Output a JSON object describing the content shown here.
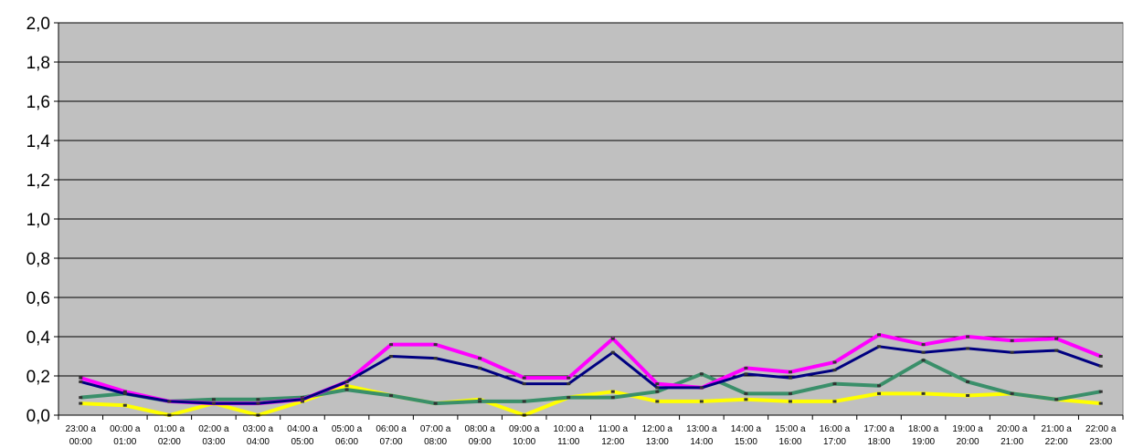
{
  "chart_data": {
    "type": "line",
    "title": "",
    "xlabel": "",
    "ylabel": "",
    "ylim": [
      0,
      2.0
    ],
    "ytick_step": 0.2,
    "ytick_labels": [
      "0,0",
      "0,2",
      "0,4",
      "0,6",
      "0,8",
      "1,0",
      "1,2",
      "1,4",
      "1,6",
      "1,8",
      "2,0"
    ],
    "grid": true,
    "legend": "none",
    "plot_background": "#C0C0C0",
    "categories": [
      "23:00 a 00:00",
      "00:00 a 01:00",
      "01:00 a 02:00",
      "02:00 a 03:00",
      "03:00 a 04:00",
      "04:00 a 05:00",
      "05:00 a 06:00",
      "06:00 a 07:00",
      "07:00 a 08:00",
      "08:00 a 09:00",
      "09:00 a 10:00",
      "10:00 a 11:00",
      "11:00 a 12:00",
      "12:00 a 13:00",
      "13:00 a 14:00",
      "14:00 a 15:00",
      "15:00 a 16:00",
      "16:00 a 17:00",
      "17:00 a 18:00",
      "18:00 a 19:00",
      "19:00 a 20:00",
      "20:00 a 21:00",
      "21:00 a 22:00",
      "22:00 a 23:00"
    ],
    "series": [
      {
        "color": "#FFFF00",
        "width": 4,
        "values": [
          0.06,
          0.05,
          0.0,
          0.06,
          0.0,
          0.07,
          0.15,
          0.1,
          0.06,
          0.08,
          0.0,
          0.09,
          0.12,
          0.07,
          0.07,
          0.08,
          0.07,
          0.07,
          0.11,
          0.11,
          0.1,
          0.11,
          0.08,
          0.06
        ]
      },
      {
        "color": "#3A8F6A",
        "width": 4,
        "values": [
          0.09,
          0.11,
          0.07,
          0.08,
          0.08,
          0.09,
          0.13,
          0.1,
          0.06,
          0.07,
          0.07,
          0.09,
          0.09,
          0.12,
          0.21,
          0.11,
          0.11,
          0.16,
          0.15,
          0.28,
          0.17,
          0.11,
          0.08,
          0.12
        ]
      },
      {
        "color": "#FF00FF",
        "width": 4,
        "values": [
          0.19,
          0.12,
          0.07,
          0.06,
          0.06,
          0.08,
          0.17,
          0.36,
          0.36,
          0.29,
          0.19,
          0.19,
          0.39,
          0.16,
          0.14,
          0.24,
          0.22,
          0.27,
          0.41,
          0.36,
          0.4,
          0.38,
          0.39,
          0.3
        ]
      },
      {
        "color": "#000080",
        "width": 3,
        "values": [
          0.17,
          0.11,
          0.07,
          0.06,
          0.06,
          0.08,
          0.17,
          0.3,
          0.29,
          0.24,
          0.16,
          0.16,
          0.32,
          0.14,
          0.14,
          0.21,
          0.19,
          0.23,
          0.35,
          0.32,
          0.34,
          0.32,
          0.33,
          0.25
        ]
      }
    ]
  }
}
